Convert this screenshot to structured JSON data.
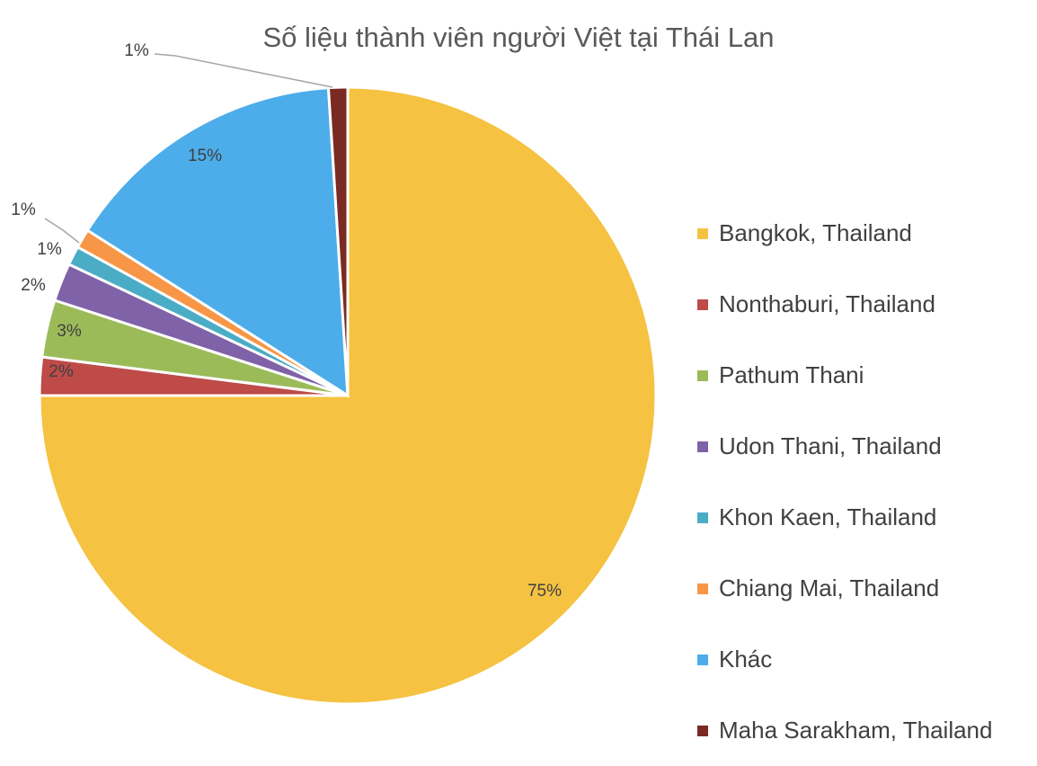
{
  "chart_data": {
    "type": "pie",
    "title": "Số liệu thành viên người Việt tại Thái Lan",
    "categories": [
      "Bangkok, Thailand",
      "Nonthaburi, Thailand",
      "Pathum Thani",
      "Udon Thani, Thailand",
      "Khon Kaen, Thailand",
      "Chiang Mai, Thailand",
      "Khác",
      "Maha Sarakham, Thailand"
    ],
    "values": [
      75,
      2,
      3,
      2,
      1,
      1,
      15,
      1
    ],
    "labels": [
      "75%",
      "2%",
      "3%",
      "2%",
      "1%",
      "1%",
      "15%",
      "1%"
    ],
    "colors": [
      "#F5C242",
      "#BE4B48",
      "#9BBB59",
      "#7F62A8",
      "#4BACC6",
      "#F79646",
      "#4DADEA",
      "#7A2A22"
    ],
    "start": "12 o'clock, clockwise",
    "legend": "right"
  }
}
